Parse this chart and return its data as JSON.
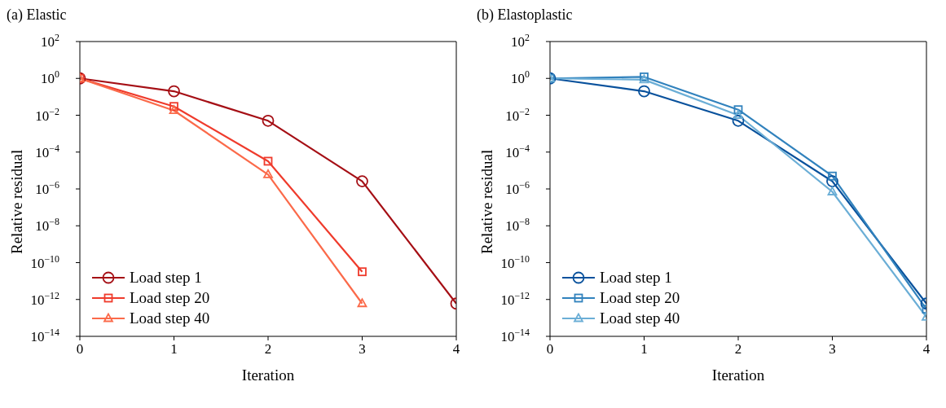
{
  "chart_data": [
    {
      "type": "line",
      "title": "(a) Elastic",
      "xlabel": "Iteration",
      "ylabel": "Relative residual",
      "x": [
        0,
        1,
        2,
        3,
        4
      ],
      "log": "y",
      "xlim": [
        0,
        4
      ],
      "xticks": [
        0,
        1,
        2,
        3,
        4
      ],
      "ylim": [
        1e-14,
        100
      ],
      "yticks": [
        {
          "value": 1e-14,
          "label": "10$^{−14}$"
        },
        {
          "value": 1e-12,
          "label": "10$^{−12}$"
        },
        {
          "value": 1e-10,
          "label": "10$^{−10}$"
        },
        {
          "value": 1e-08,
          "label": "10$^{−8}$"
        },
        {
          "value": 1e-06,
          "label": "10$^{−6}$"
        },
        {
          "value": 0.0001,
          "label": "10$^{−4}$"
        },
        {
          "value": 0.01,
          "label": "10$^{−2}$"
        },
        {
          "value": 1,
          "label": "10$^{0}$"
        },
        {
          "value": 100,
          "label": "10$^{2}$"
        }
      ],
      "grid": false,
      "legend": "bottom left",
      "line_style": "solid",
      "series": [
        {
          "name": "Load step 1",
          "color": "#a50f15",
          "marker": "circle",
          "values": [
            1,
            0.2,
            0.005,
            2.6e-06,
            6e-13
          ]
        },
        {
          "name": "Load step 20",
          "color": "#ef3b2c",
          "marker": "square",
          "values": [
            1,
            0.03,
            3.2e-05,
            3.2e-11,
            null
          ]
        },
        {
          "name": "Load step 40",
          "color": "#fb6a4a",
          "marker": "triangle",
          "values": [
            1,
            0.018,
            6e-06,
            6e-13,
            null
          ]
        }
      ]
    },
    {
      "type": "line",
      "title": "(b) Elastoplastic",
      "xlabel": "Iteration",
      "ylabel": "Relative residual",
      "x": [
        0,
        1,
        2,
        3,
        4
      ],
      "log": "y",
      "xlim": [
        0,
        4
      ],
      "xticks": [
        0,
        1,
        2,
        3,
        4
      ],
      "ylim": [
        1e-14,
        100
      ],
      "yticks": [
        {
          "value": 1e-14,
          "label": "10$^{−14}$"
        },
        {
          "value": 1e-12,
          "label": "10$^{−12}$"
        },
        {
          "value": 1e-10,
          "label": "10$^{−10}$"
        },
        {
          "value": 1e-08,
          "label": "10$^{−8}$"
        },
        {
          "value": 1e-06,
          "label": "10$^{−6}$"
        },
        {
          "value": 0.0001,
          "label": "10$^{−4}$"
        },
        {
          "value": 0.01,
          "label": "10$^{−2}$"
        },
        {
          "value": 1,
          "label": "10$^{0}$"
        },
        {
          "value": 100,
          "label": "10$^{2}$"
        }
      ],
      "grid": false,
      "legend": "bottom left",
      "line_style": "solid",
      "series": [
        {
          "name": "Load step 1",
          "color": "#08519c",
          "marker": "circle",
          "values": [
            1,
            0.2,
            0.005,
            2.6e-06,
            6e-13
          ]
        },
        {
          "name": "Load step 20",
          "color": "#3182bd",
          "marker": "square",
          "values": [
            1,
            1.2,
            0.02,
            5e-06,
            3e-13
          ]
        },
        {
          "name": "Load step 40",
          "color": "#6baed6",
          "marker": "triangle",
          "values": [
            1,
            0.85,
            0.01,
            7e-07,
            1.1e-13
          ]
        }
      ]
    }
  ]
}
